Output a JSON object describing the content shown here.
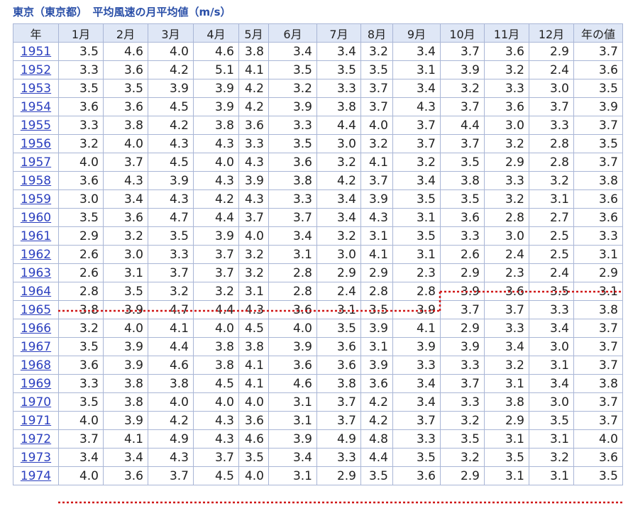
{
  "title": "東京（東京都）　平均風速の月平均値（m/s）",
  "table": {
    "header": [
      "年",
      "1月",
      "2月",
      "3月",
      "4月",
      "5月",
      "6月",
      "7月",
      "8月",
      "9月",
      "10月",
      "11月",
      "12月",
      "年の値"
    ],
    "rows": [
      [
        "1951",
        "3.5",
        "4.6",
        "4.0",
        "4.6",
        "3.8",
        "3.4",
        "3.4",
        "3.2",
        "3.4",
        "3.7",
        "3.6",
        "2.9",
        "3.7"
      ],
      [
        "1952",
        "3.3",
        "3.6",
        "4.2",
        "5.1",
        "4.1",
        "3.5",
        "3.5",
        "3.5",
        "3.1",
        "3.9",
        "3.2",
        "2.4",
        "3.6"
      ],
      [
        "1953",
        "3.5",
        "3.5",
        "3.9",
        "3.9",
        "4.2",
        "3.2",
        "3.3",
        "3.7",
        "3.4",
        "3.2",
        "3.3",
        "3.0",
        "3.5"
      ],
      [
        "1954",
        "3.6",
        "3.6",
        "4.5",
        "3.9",
        "4.2",
        "3.9",
        "3.8",
        "3.7",
        "4.3",
        "3.7",
        "3.6",
        "3.7",
        "3.9"
      ],
      [
        "1955",
        "3.3",
        "3.8",
        "4.2",
        "3.8",
        "3.6",
        "3.3",
        "4.4",
        "4.0",
        "3.7",
        "4.4",
        "3.0",
        "3.3",
        "3.7"
      ],
      [
        "1956",
        "3.2",
        "4.0",
        "4.3",
        "4.3",
        "3.3",
        "3.5",
        "3.0",
        "3.2",
        "3.7",
        "3.7",
        "3.2",
        "2.8",
        "3.5"
      ],
      [
        "1957",
        "4.0",
        "3.7",
        "4.5",
        "4.0",
        "4.3",
        "3.6",
        "3.2",
        "4.1",
        "3.2",
        "3.5",
        "2.9",
        "2.8",
        "3.7"
      ],
      [
        "1958",
        "3.6",
        "4.3",
        "3.9",
        "4.3",
        "3.9",
        "3.8",
        "4.2",
        "3.7",
        "3.4",
        "3.8",
        "3.3",
        "3.2",
        "3.8"
      ],
      [
        "1959",
        "3.0",
        "3.4",
        "4.3",
        "4.2",
        "4.3",
        "3.3",
        "3.4",
        "3.9",
        "3.5",
        "3.5",
        "3.2",
        "3.1",
        "3.6"
      ],
      [
        "1960",
        "3.5",
        "3.6",
        "4.7",
        "4.4",
        "3.7",
        "3.7",
        "3.4",
        "4.3",
        "3.1",
        "3.6",
        "2.8",
        "2.7",
        "3.6"
      ],
      [
        "1961",
        "2.9",
        "3.2",
        "3.5",
        "3.9",
        "4.0",
        "3.4",
        "3.2",
        "3.1",
        "3.5",
        "3.3",
        "3.0",
        "2.5",
        "3.3"
      ],
      [
        "1962",
        "2.6",
        "3.0",
        "3.3",
        "3.7",
        "3.2",
        "3.1",
        "3.0",
        "4.1",
        "3.1",
        "2.6",
        "2.4",
        "2.5",
        "3.1"
      ],
      [
        "1963",
        "2.6",
        "3.1",
        "3.7",
        "3.7",
        "3.2",
        "2.8",
        "2.9",
        "2.9",
        "2.3",
        "2.9",
        "2.3",
        "2.4",
        "2.9"
      ],
      [
        "1964",
        "2.8",
        "3.5",
        "3.2",
        "3.2",
        "3.1",
        "2.8",
        "2.4",
        "2.8",
        "2.8",
        "3.9",
        "3.6",
        "3.5",
        "3.1"
      ],
      [
        "1965",
        "3.8",
        "3.9",
        "4.7",
        "4.4",
        "4.3",
        "3.6",
        "3.1",
        "3.5",
        "3.9",
        "3.7",
        "3.7",
        "3.3",
        "3.8"
      ],
      [
        "1966",
        "3.2",
        "4.0",
        "4.1",
        "4.0",
        "4.5",
        "4.0",
        "3.5",
        "3.9",
        "4.1",
        "2.9",
        "3.3",
        "3.4",
        "3.7"
      ],
      [
        "1967",
        "3.5",
        "3.9",
        "4.4",
        "3.8",
        "3.8",
        "3.9",
        "3.6",
        "3.1",
        "3.9",
        "3.9",
        "3.4",
        "3.0",
        "3.7"
      ],
      [
        "1968",
        "3.6",
        "3.9",
        "4.6",
        "3.8",
        "4.1",
        "3.6",
        "3.6",
        "3.9",
        "3.3",
        "3.3",
        "3.2",
        "3.1",
        "3.7"
      ],
      [
        "1969",
        "3.3",
        "3.8",
        "3.8",
        "4.5",
        "4.1",
        "4.6",
        "3.8",
        "3.6",
        "3.4",
        "3.7",
        "3.1",
        "3.4",
        "3.8"
      ],
      [
        "1970",
        "3.5",
        "3.8",
        "4.0",
        "4.0",
        "4.0",
        "3.1",
        "3.7",
        "4.2",
        "3.4",
        "3.3",
        "3.8",
        "3.0",
        "3.7"
      ],
      [
        "1971",
        "4.0",
        "3.9",
        "4.2",
        "4.3",
        "3.6",
        "3.1",
        "3.7",
        "4.2",
        "3.7",
        "3.2",
        "2.9",
        "3.5",
        "3.7"
      ],
      [
        "1972",
        "3.7",
        "4.1",
        "4.9",
        "4.3",
        "4.6",
        "3.9",
        "4.9",
        "4.8",
        "3.3",
        "3.5",
        "3.1",
        "3.1",
        "4.0"
      ],
      [
        "1973",
        "3.4",
        "3.4",
        "4.3",
        "3.7",
        "3.5",
        "3.4",
        "3.3",
        "4.4",
        "3.5",
        "3.2",
        "3.5",
        "3.2",
        "3.6"
      ],
      [
        "1974",
        "4.0",
        "3.6",
        "3.7",
        "4.5",
        "4.0",
        "3.1",
        "2.9",
        "3.5",
        "3.6",
        "2.9",
        "3.1",
        "3.1",
        "3.5"
      ]
    ]
  }
}
